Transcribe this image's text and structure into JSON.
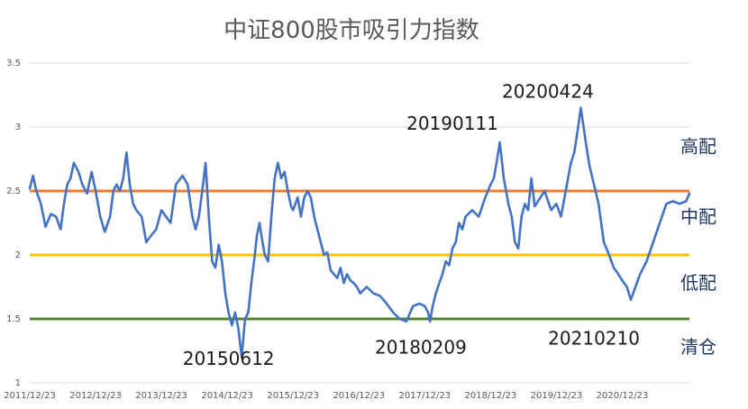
{
  "chart_data": {
    "type": "line",
    "title": "中证800股市吸引力指数",
    "xlabel": "",
    "ylabel": "",
    "ylim": [
      1,
      3.5
    ],
    "yticks": [
      "1",
      "1.5",
      "2",
      "2.5",
      "3",
      "3.5"
    ],
    "xticks": [
      "2011/12/23",
      "2012/12/23",
      "2013/12/23",
      "2014/12/23",
      "2015/12/23",
      "2016/12/23",
      "2017/12/23",
      "2018/12/23",
      "2019/12/23",
      "2020/12/23"
    ],
    "grid": "horizontal",
    "series": [
      {
        "color": "#4472c4",
        "x": [
          2011.98,
          2012.03,
          2012.08,
          2012.15,
          2012.22,
          2012.3,
          2012.38,
          2012.45,
          2012.5,
          2012.55,
          2012.6,
          2012.65,
          2012.72,
          2012.78,
          2012.85,
          2012.92,
          2012.98,
          2013.05,
          2013.12,
          2013.2,
          2013.25,
          2013.3,
          2013.35,
          2013.4,
          2013.45,
          2013.5,
          2013.55,
          2013.6,
          2013.68,
          2013.75,
          2013.82,
          2013.9,
          2013.98,
          2014.05,
          2014.12,
          2014.2,
          2014.3,
          2014.38,
          2014.45,
          2014.5,
          2014.55,
          2014.6,
          2014.65,
          2014.7,
          2014.75,
          2014.8,
          2014.85,
          2014.9,
          2014.95,
          2015.0,
          2015.05,
          2015.1,
          2015.15,
          2015.2,
          2015.25,
          2015.3,
          2015.35,
          2015.4,
          2015.43,
          2015.47,
          2015.5,
          2015.55,
          2015.6,
          2015.65,
          2015.7,
          2015.75,
          2015.8,
          2015.85,
          2015.9,
          2015.95,
          2015.98,
          2016.05,
          2016.1,
          2016.15,
          2016.2,
          2016.25,
          2016.3,
          2016.35,
          2016.4,
          2016.45,
          2016.5,
          2016.55,
          2016.6,
          2016.65,
          2016.7,
          2016.75,
          2016.8,
          2016.85,
          2016.9,
          2016.95,
          2017.0,
          2017.1,
          2017.2,
          2017.3,
          2017.4,
          2017.5,
          2017.6,
          2017.7,
          2017.8,
          2017.9,
          2017.98,
          2018.03,
          2018.06,
          2018.1,
          2018.15,
          2018.2,
          2018.25,
          2018.3,
          2018.35,
          2018.4,
          2018.45,
          2018.5,
          2018.55,
          2018.6,
          2018.7,
          2018.8,
          2018.9,
          2018.98,
          2019.03,
          2019.08,
          2019.12,
          2019.18,
          2019.25,
          2019.3,
          2019.35,
          2019.4,
          2019.45,
          2019.5,
          2019.55,
          2019.6,
          2019.65,
          2019.7,
          2019.8,
          2019.9,
          2019.98,
          2020.05,
          2020.12,
          2020.2,
          2020.25,
          2020.31,
          2020.35,
          2020.42,
          2020.48,
          2020.55,
          2020.62,
          2020.7,
          2020.78,
          2020.85,
          2020.92,
          2020.98,
          2021.05,
          2021.11,
          2021.18,
          2021.25,
          2021.35,
          2021.45,
          2021.55,
          2021.65,
          2021.75,
          2021.85,
          2021.95,
          2022.0
        ],
        "y": [
          2.52,
          2.62,
          2.5,
          2.4,
          2.22,
          2.32,
          2.3,
          2.2,
          2.4,
          2.55,
          2.6,
          2.72,
          2.65,
          2.55,
          2.48,
          2.65,
          2.5,
          2.3,
          2.18,
          2.3,
          2.5,
          2.55,
          2.5,
          2.6,
          2.8,
          2.55,
          2.4,
          2.35,
          2.3,
          2.1,
          2.15,
          2.2,
          2.35,
          2.3,
          2.25,
          2.55,
          2.62,
          2.55,
          2.3,
          2.2,
          2.3,
          2.5,
          2.72,
          2.3,
          1.95,
          1.9,
          2.08,
          1.95,
          1.7,
          1.55,
          1.45,
          1.55,
          1.42,
          1.2,
          1.5,
          1.55,
          1.8,
          2.0,
          2.15,
          2.25,
          2.15,
          2.0,
          1.95,
          2.3,
          2.6,
          2.72,
          2.6,
          2.65,
          2.5,
          2.38,
          2.35,
          2.45,
          2.3,
          2.45,
          2.5,
          2.45,
          2.3,
          2.2,
          2.1,
          2.0,
          2.02,
          1.88,
          1.85,
          1.82,
          1.9,
          1.78,
          1.85,
          1.8,
          1.78,
          1.75,
          1.7,
          1.75,
          1.7,
          1.68,
          1.62,
          1.55,
          1.5,
          1.48,
          1.6,
          1.62,
          1.6,
          1.55,
          1.48,
          1.6,
          1.7,
          1.78,
          1.85,
          1.95,
          1.92,
          2.05,
          2.1,
          2.25,
          2.2,
          2.3,
          2.35,
          2.3,
          2.45,
          2.55,
          2.6,
          2.75,
          2.88,
          2.6,
          2.4,
          2.3,
          2.1,
          2.05,
          2.3,
          2.4,
          2.35,
          2.6,
          2.38,
          2.42,
          2.5,
          2.35,
          2.4,
          2.3,
          2.5,
          2.72,
          2.8,
          3.0,
          3.15,
          2.9,
          2.7,
          2.55,
          2.4,
          2.1,
          2.0,
          1.9,
          1.85,
          1.8,
          1.75,
          1.65,
          1.75,
          1.85,
          1.95,
          2.1,
          2.25,
          2.4,
          2.42,
          2.4,
          2.42,
          2.48
        ]
      }
    ],
    "reference_lines": [
      {
        "y": 2.5,
        "color": "#ed7d31"
      },
      {
        "y": 2.0,
        "color": "#ffc000"
      },
      {
        "y": 1.5,
        "color": "#548235"
      }
    ],
    "zone_labels": [
      {
        "text": "高配",
        "y": 2.85
      },
      {
        "text": "中配",
        "y": 2.3
      },
      {
        "text": "低配",
        "y": 1.78
      },
      {
        "text": "清仓",
        "y": 1.28
      }
    ],
    "annotations": [
      {
        "text": "20150612",
        "x": 2015.0,
        "y": 1.14
      },
      {
        "text": "20180209",
        "x": 2017.92,
        "y": 1.23
      },
      {
        "text": "20190111",
        "x": 2018.4,
        "y": 2.98
      },
      {
        "text": "20200424",
        "x": 2019.85,
        "y": 3.23
      },
      {
        "text": "20210210",
        "x": 2020.55,
        "y": 1.3
      }
    ]
  }
}
